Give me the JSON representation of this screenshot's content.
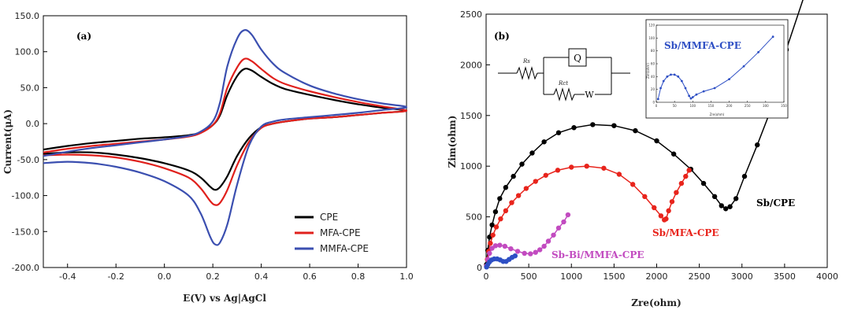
{
  "chart_data": [
    {
      "type": "line",
      "panel_label": "(a)",
      "xlabel": "E(V) vs Ag|AgCl",
      "ylabel": "Current(μA)",
      "xlim": [
        -0.5,
        1.0
      ],
      "ylim": [
        -200,
        150
      ],
      "xticks": [
        -0.4,
        -0.2,
        0.0,
        0.2,
        0.4,
        0.6,
        0.8,
        1.0
      ],
      "xtick_labels": [
        "-0.4",
        "-0.2",
        "0.0",
        "0.2",
        "0.4",
        "0.6",
        "0.8",
        "1.0"
      ],
      "yticks": [
        -200,
        -150,
        -100,
        -50,
        0,
        50,
        100,
        150
      ],
      "ytick_labels": [
        "-200.0",
        "-150.0",
        "-100.0",
        "-50.0",
        "0.0",
        "50.0",
        "100.0",
        "150.0"
      ],
      "legend_position": "bottom-right",
      "series": [
        {
          "name": "CPE",
          "color": "#000000",
          "x": [
            -0.5,
            -0.4,
            -0.3,
            -0.2,
            -0.1,
            0.0,
            0.1,
            0.15,
            0.2,
            0.23,
            0.26,
            0.3,
            0.33,
            0.36,
            0.4,
            0.45,
            0.5,
            0.6,
            0.7,
            0.8,
            0.9,
            1.0,
            0.9,
            0.8,
            0.7,
            0.6,
            0.5,
            0.45,
            0.4,
            0.35,
            0.3,
            0.26,
            0.23,
            0.21,
            0.19,
            0.15,
            0.1,
            0.0,
            -0.1,
            -0.2,
            -0.3,
            -0.4,
            -0.5
          ],
          "y": [
            -36,
            -31,
            -27,
            -24,
            -21,
            -19,
            -16,
            -12,
            -2,
            12,
            40,
            66,
            76,
            74,
            65,
            55,
            48,
            40,
            33,
            27,
            22,
            18,
            15,
            12,
            9,
            7,
            3,
            0,
            -5,
            -20,
            -45,
            -73,
            -88,
            -92,
            -88,
            -75,
            -65,
            -55,
            -48,
            -43,
            -40,
            -40,
            -42
          ]
        },
        {
          "name": "MFA-CPE",
          "color": "#e0201c",
          "x": [
            -0.5,
            -0.4,
            -0.3,
            -0.2,
            -0.1,
            0.0,
            0.1,
            0.15,
            0.2,
            0.23,
            0.26,
            0.3,
            0.33,
            0.36,
            0.4,
            0.45,
            0.5,
            0.6,
            0.7,
            0.8,
            0.9,
            1.0,
            0.9,
            0.8,
            0.7,
            0.6,
            0.5,
            0.45,
            0.4,
            0.35,
            0.3,
            0.26,
            0.23,
            0.21,
            0.19,
            0.15,
            0.1,
            0.0,
            -0.1,
            -0.2,
            -0.3,
            -0.4,
            -0.5
          ],
          "y": [
            -40,
            -35,
            -31,
            -28,
            -25,
            -22,
            -18,
            -13,
            -2,
            15,
            50,
            78,
            90,
            87,
            76,
            63,
            55,
            45,
            37,
            30,
            24,
            18,
            15,
            12,
            9,
            7,
            3,
            0,
            -6,
            -25,
            -58,
            -92,
            -110,
            -113,
            -108,
            -90,
            -75,
            -62,
            -53,
            -47,
            -44,
            -43,
            -44
          ]
        },
        {
          "name": "MMFA-CPE",
          "color": "#3b4fb0",
          "x": [
            -0.5,
            -0.4,
            -0.3,
            -0.2,
            -0.1,
            0.0,
            0.1,
            0.15,
            0.2,
            0.23,
            0.26,
            0.3,
            0.33,
            0.36,
            0.4,
            0.45,
            0.5,
            0.6,
            0.7,
            0.8,
            0.9,
            1.0,
            0.9,
            0.8,
            0.7,
            0.6,
            0.5,
            0.45,
            0.4,
            0.35,
            0.3,
            0.26,
            0.23,
            0.21,
            0.19,
            0.15,
            0.1,
            0.0,
            -0.1,
            -0.2,
            -0.3,
            -0.4,
            -0.5
          ],
          "y": [
            -45,
            -39,
            -34,
            -30,
            -26,
            -22,
            -17,
            -11,
            3,
            30,
            80,
            118,
            130,
            124,
            103,
            83,
            70,
            53,
            42,
            34,
            28,
            23,
            19,
            15,
            12,
            9,
            6,
            3,
            -4,
            -30,
            -85,
            -140,
            -165,
            -168,
            -158,
            -125,
            -100,
            -80,
            -68,
            -60,
            -55,
            -53,
            -55
          ]
        }
      ]
    },
    {
      "type": "scatter",
      "panel_label": "(b)",
      "xlabel": "Zre(ohm)",
      "ylabel": "Zim(ohm)",
      "xlim": [
        0,
        4000
      ],
      "ylim": [
        0,
        2500
      ],
      "xticks": [
        0,
        500,
        1000,
        1500,
        2000,
        2500,
        3000,
        3500,
        4000
      ],
      "yticks": [
        0,
        500,
        1000,
        1500,
        2000,
        2500
      ],
      "series": [
        {
          "name": "Sb/CPE",
          "color": "#000000",
          "x": [
            5,
            20,
            40,
            70,
            110,
            160,
            230,
            320,
            420,
            540,
            680,
            850,
            1030,
            1250,
            1500,
            1750,
            2000,
            2200,
            2400,
            2550,
            2680,
            2760,
            2810,
            2860,
            2930,
            3030,
            3180,
            3350,
            3520,
            3730
          ],
          "y": [
            30,
            170,
            300,
            420,
            550,
            680,
            790,
            900,
            1020,
            1130,
            1240,
            1330,
            1380,
            1410,
            1400,
            1350,
            1250,
            1120,
            970,
            830,
            700,
            610,
            580,
            600,
            680,
            900,
            1210,
            1580,
            2150,
            2680
          ]
        },
        {
          "name": "Sb/MFA-CPE",
          "color": "#e8241c",
          "x": [
            5,
            15,
            30,
            50,
            80,
            120,
            170,
            230,
            300,
            380,
            470,
            580,
            700,
            840,
            1000,
            1180,
            1380,
            1560,
            1720,
            1860,
            1970,
            2050,
            2090,
            2110,
            2140,
            2180,
            2230,
            2290,
            2340,
            2380
          ],
          "y": [
            15,
            80,
            160,
            240,
            320,
            400,
            480,
            560,
            640,
            710,
            780,
            850,
            910,
            960,
            990,
            1000,
            980,
            920,
            820,
            700,
            590,
            510,
            470,
            480,
            560,
            650,
            740,
            830,
            900,
            960
          ]
        },
        {
          "name": "Sb-Bi/MMFA-CPE",
          "color": "#c24bc0",
          "x": [
            5,
            20,
            40,
            70,
            110,
            160,
            220,
            290,
            370,
            450,
            520,
            580,
            630,
            680,
            730,
            790,
            850,
            910,
            960
          ],
          "y": [
            15,
            80,
            140,
            190,
            215,
            220,
            210,
            185,
            160,
            140,
            135,
            150,
            175,
            210,
            260,
            320,
            390,
            450,
            520
          ]
        },
        {
          "name": "Sb/MMFA-CPE",
          "color": "#2e4fc4",
          "x": [
            5,
            20,
            40,
            65,
            95,
            130,
            165,
            200,
            235,
            270,
            305,
            340
          ],
          "y": [
            5,
            30,
            55,
            75,
            85,
            85,
            75,
            60,
            60,
            80,
            100,
            115
          ]
        }
      ],
      "circuit": {
        "rs_label": "Rs",
        "q_label": "Q",
        "rct_label": "Rct",
        "w_label": "W"
      },
      "inset": {
        "title": "Sb/MMFA-CPE",
        "xlabel": "Zre(ohm)",
        "ylabel": "Zim(ohm)",
        "xlim": [
          0,
          350
        ],
        "ylim": [
          0,
          120
        ],
        "xticks": [
          0,
          50,
          100,
          150,
          200,
          250,
          300,
          350
        ],
        "yticks": [
          0,
          20,
          40,
          60,
          80,
          100,
          120
        ],
        "x": [
          5,
          12,
          20,
          30,
          40,
          50,
          60,
          70,
          80,
          90,
          95,
          100,
          110,
          130,
          160,
          200,
          240,
          280,
          320
        ],
        "y": [
          5,
          22,
          33,
          40,
          43,
          43,
          40,
          33,
          22,
          10,
          6,
          8,
          12,
          17,
          22,
          36,
          56,
          78,
          102
        ]
      }
    }
  ]
}
